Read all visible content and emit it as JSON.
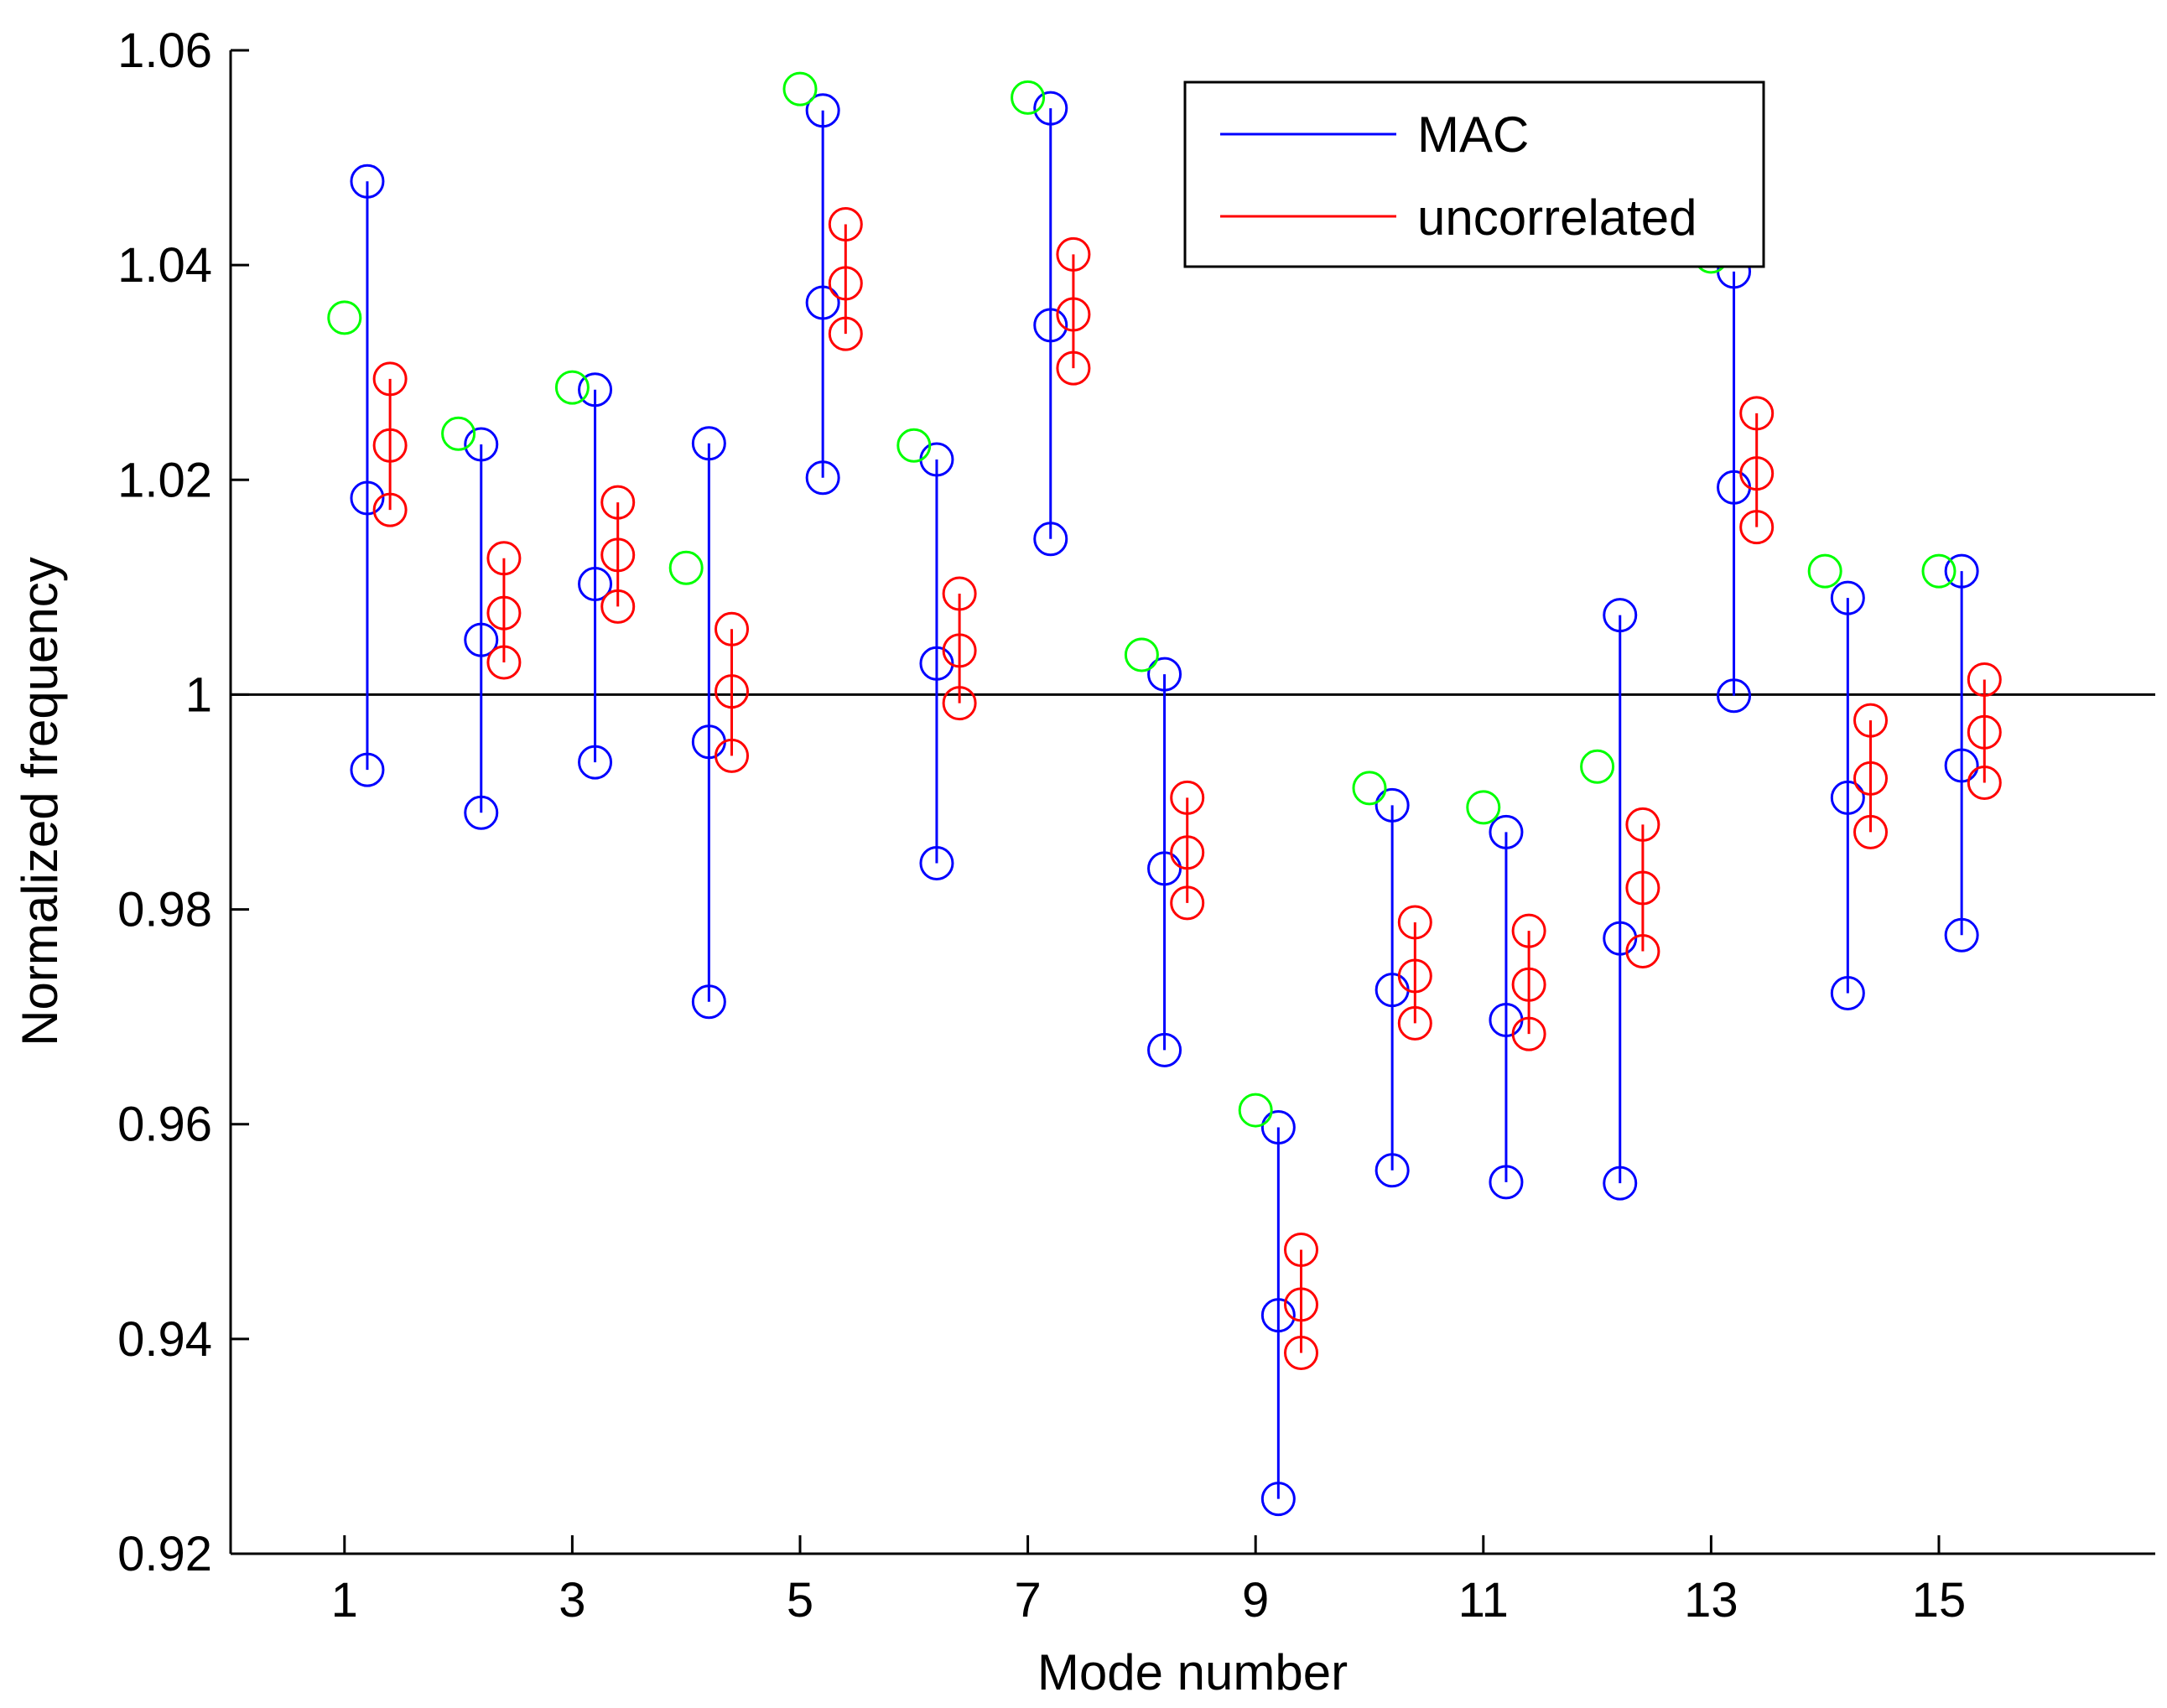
{
  "chart_data": {
    "type": "scatter",
    "xlabel": "Mode number",
    "ylabel": "Normalized frequency",
    "xlim": [
      0,
      16.9
    ],
    "ylim": [
      0.92,
      1.06
    ],
    "xticks": [
      1,
      3,
      5,
      7,
      9,
      11,
      13,
      15
    ],
    "xtick_labels": [
      "1",
      "3",
      "5",
      "7",
      "9",
      "11",
      "13",
      "15"
    ],
    "yticks": [
      0.92,
      0.94,
      0.96,
      0.98,
      1.0,
      1.02,
      1.04,
      1.06
    ],
    "ytick_labels": [
      "0.92",
      "0.94",
      "0.96",
      "0.98",
      "1",
      "1.02",
      "1.04",
      "1.06"
    ],
    "reference_line": 1.0,
    "grid": false,
    "legend_position": "top-right",
    "colors": {
      "MAC": "#0000ff",
      "uncorrelated": "#ff0000",
      "reference": "#00ff00",
      "axis": "#000000"
    },
    "series": [
      {
        "name": "MAC",
        "x_offset": 0.2,
        "points": [
          {
            "mode": 1,
            "low": 0.993,
            "mid": 1.0183,
            "high": 1.0478
          },
          {
            "mode": 2,
            "low": 0.989,
            "mid": 1.0051,
            "high": 1.0233
          },
          {
            "mode": 3,
            "low": 0.9937,
            "mid": 1.0103,
            "high": 1.0284
          },
          {
            "mode": 4,
            "low": 0.9714,
            "mid": 0.9956,
            "high": 1.0234
          },
          {
            "mode": 5,
            "low": 1.0202,
            "mid": 1.0365,
            "high": 1.0544
          },
          {
            "mode": 6,
            "low": 0.9843,
            "mid": 1.0029,
            "high": 1.0219
          },
          {
            "mode": 7,
            "low": 1.0145,
            "mid": 1.0344,
            "high": 1.0546
          },
          {
            "mode": 8,
            "low": 0.9669,
            "mid": 0.9838,
            "high": 1.0019
          },
          {
            "mode": 9,
            "low": 0.9251,
            "mid": 0.9422,
            "high": 0.9597
          },
          {
            "mode": 10,
            "low": 0.9557,
            "mid": 0.9725,
            "high": 0.9897
          },
          {
            "mode": 11,
            "low": 0.9546,
            "mid": 0.9697,
            "high": 0.9872
          },
          {
            "mode": 12,
            "low": 0.9545,
            "mid": 0.9773,
            "high": 1.0074
          },
          {
            "mode": 13,
            "low": 0.9999,
            "mid": 1.0193,
            "high": 1.0394
          },
          {
            "mode": 14,
            "low": 0.9722,
            "mid": 0.9904,
            "high": 1.009
          },
          {
            "mode": 15,
            "low": 0.9776,
            "mid": 0.9934,
            "high": 1.0115
          }
        ]
      },
      {
        "name": "uncorrelated",
        "x_offset": 0.4,
        "points": [
          {
            "mode": 1,
            "low": 1.0172,
            "mid": 1.0232,
            "high": 1.0294
          },
          {
            "mode": 2,
            "low": 1.003,
            "mid": 1.0076,
            "high": 1.0127
          },
          {
            "mode": 3,
            "low": 1.0082,
            "mid": 1.013,
            "high": 1.0179
          },
          {
            "mode": 4,
            "low": 0.9943,
            "mid": 1.0003,
            "high": 1.0061
          },
          {
            "mode": 5,
            "low": 1.0336,
            "mid": 1.0383,
            "high": 1.0438
          },
          {
            "mode": 6,
            "low": 0.9992,
            "mid": 1.0041,
            "high": 1.0094
          },
          {
            "mode": 7,
            "low": 1.0304,
            "mid": 1.0354,
            "high": 1.041
          },
          {
            "mode": 8,
            "low": 0.9806,
            "mid": 0.9853,
            "high": 0.9904
          },
          {
            "mode": 9,
            "low": 0.9387,
            "mid": 0.9432,
            "high": 0.9483
          },
          {
            "mode": 10,
            "low": 0.9694,
            "mid": 0.9738,
            "high": 0.9788
          },
          {
            "mode": 11,
            "low": 0.9684,
            "mid": 0.973,
            "high": 0.978
          },
          {
            "mode": 12,
            "low": 0.9761,
            "mid": 0.982,
            "high": 0.9879
          },
          {
            "mode": 13,
            "low": 1.0156,
            "mid": 1.0206,
            "high": 1.0262
          },
          {
            "mode": 14,
            "low": 0.9872,
            "mid": 0.9922,
            "high": 0.9976
          },
          {
            "mode": 15,
            "low": 0.9918,
            "mid": 0.9965,
            "high": 1.0014
          }
        ]
      },
      {
        "x_offset": 0.0,
        "points": [
          {
            "mode": 1,
            "value": 1.0351
          },
          {
            "mode": 2,
            "value": 1.0243
          },
          {
            "mode": 3,
            "value": 1.0286
          },
          {
            "mode": 4,
            "value": 1.0118
          },
          {
            "mode": 5,
            "value": 1.0564
          },
          {
            "mode": 6,
            "value": 1.0232
          },
          {
            "mode": 7,
            "value": 1.0556
          },
          {
            "mode": 8,
            "value": 1.0037
          },
          {
            "mode": 9,
            "value": 0.9613
          },
          {
            "mode": 10,
            "value": 0.9913
          },
          {
            "mode": 11,
            "value": 0.9895
          },
          {
            "mode": 12,
            "value": 0.9933
          },
          {
            "mode": 13,
            "value": 1.0408
          },
          {
            "mode": 14,
            "value": 1.0115
          },
          {
            "mode": 15,
            "value": 1.0115
          }
        ]
      }
    ],
    "legend": [
      {
        "label": "MAC",
        "color": "#0000ff"
      },
      {
        "label": "uncorrelated",
        "color": "#ff0000"
      }
    ]
  }
}
